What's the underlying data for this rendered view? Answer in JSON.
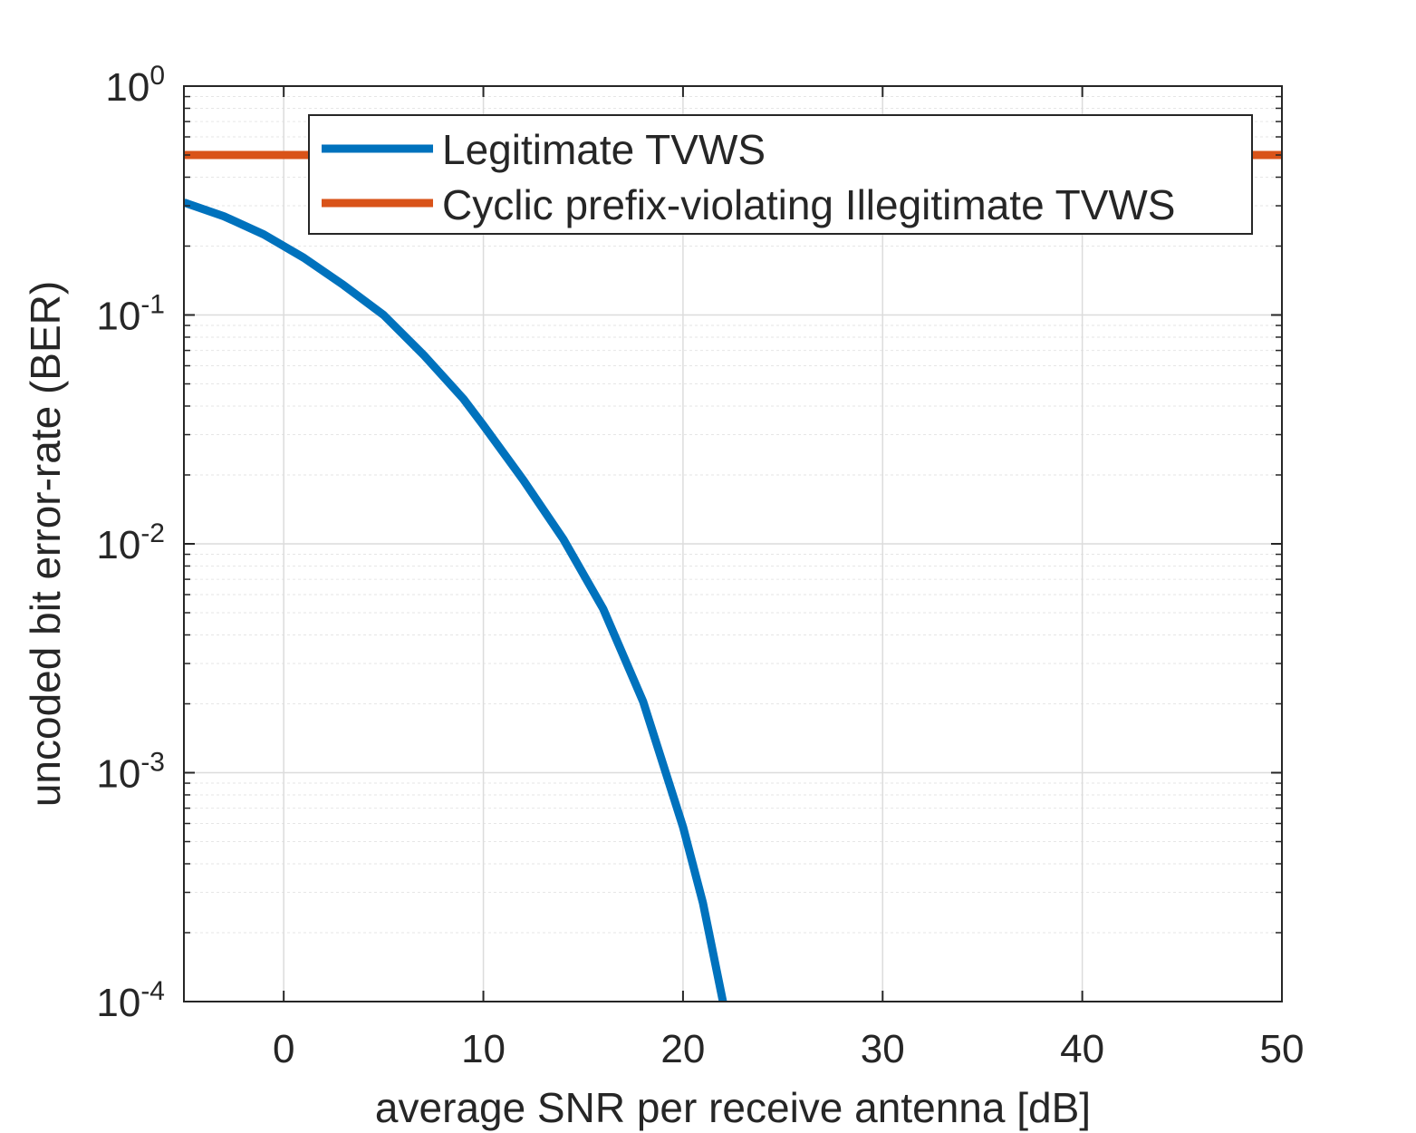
{
  "chart_data": {
    "type": "line",
    "title": "",
    "xlabel": "average SNR per receive antenna [dB]",
    "ylabel": "uncoded bit error-rate (BER)",
    "xlim": [
      -5,
      50
    ],
    "ylim": [
      0.0001,
      1
    ],
    "yscale": "log",
    "grid": true,
    "legend_position": "top",
    "x_ticks": [
      0,
      10,
      20,
      30,
      40,
      50
    ],
    "x_tick_labels": [
      "0",
      "10",
      "20",
      "30",
      "40",
      "50"
    ],
    "y_ticks": [
      1,
      0.1,
      0.01,
      0.001,
      0.0001
    ],
    "y_tick_labels": [
      {
        "base": "10",
        "exp": "0"
      },
      {
        "base": "10",
        "exp": "-1"
      },
      {
        "base": "10",
        "exp": "-2"
      },
      {
        "base": "10",
        "exp": "-3"
      },
      {
        "base": "10",
        "exp": "-4"
      }
    ],
    "series": [
      {
        "name": "Legitimate TVWS",
        "color": "#0072BD",
        "x": [
          -5,
          -3,
          -1,
          0,
          1,
          3,
          5,
          7,
          9,
          10,
          12,
          14,
          16,
          18,
          20,
          21,
          22
        ],
        "y": [
          0.31,
          0.27,
          0.225,
          0.2,
          0.178,
          0.135,
          0.1,
          0.067,
          0.043,
          0.033,
          0.019,
          0.0105,
          0.0052,
          0.00205,
          0.00058,
          0.00027,
          0.0001
        ]
      },
      {
        "name": "Cyclic prefix-violating Illegitimate TVWS",
        "color": "#D95319",
        "x": [
          -5,
          0,
          10,
          20,
          30,
          40,
          50
        ],
        "y": [
          0.5,
          0.5,
          0.5,
          0.5,
          0.5,
          0.5,
          0.5
        ]
      }
    ]
  }
}
